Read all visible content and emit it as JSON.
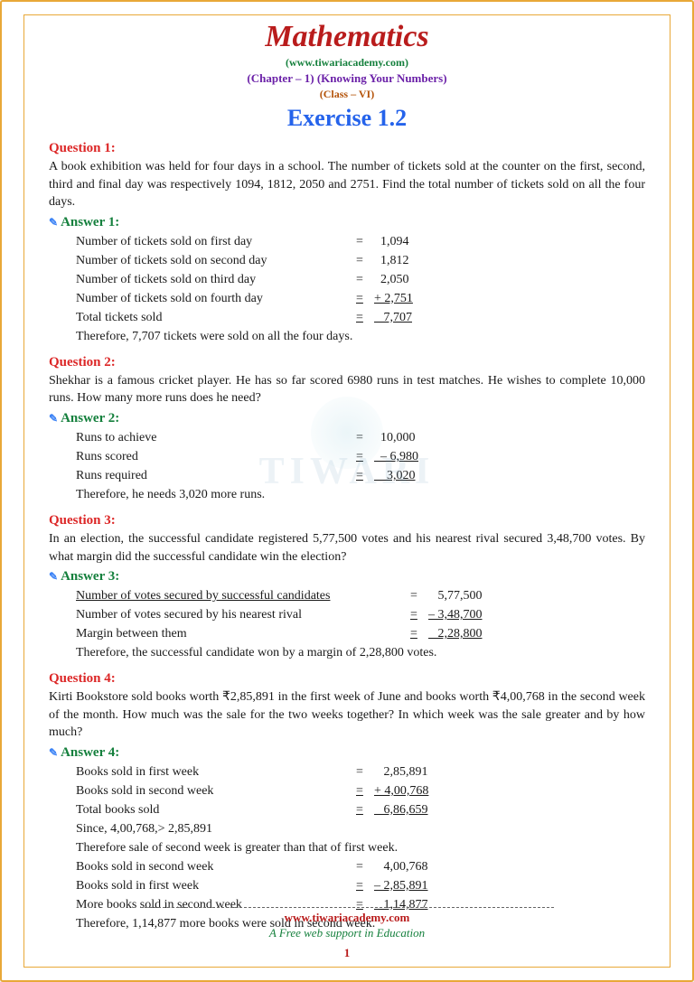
{
  "header": {
    "title": "Mathematics",
    "website": "(www.tiwariacademy.com)",
    "chapter": "(Chapter – 1) (Knowing Your Numbers)",
    "class": "(Class – VI)",
    "exercise": "Exercise 1.2"
  },
  "q1": {
    "label": "Question 1:",
    "text": "A book exhibition was held for four days in a school. The number of tickets sold at the counter on the first, second, third and final day was respectively 1094, 1812, 2050 and 2751. Find the total number of tickets sold on all the four days.",
    "answer_label": "Answer 1:",
    "rows": [
      {
        "desc": "Number of tickets sold on first day",
        "val": "  1,094"
      },
      {
        "desc": "Number of tickets sold on second day",
        "val": "  1,812"
      },
      {
        "desc": "Number of tickets sold on third day",
        "val": "  2,050"
      },
      {
        "desc": "Number of tickets sold on fourth day",
        "val": "+ 2,751",
        "u": true
      },
      {
        "desc": "Total tickets sold",
        "val": "   7,707",
        "u": true
      }
    ],
    "conclusion": "Therefore, 7,707 tickets were sold on all the four days."
  },
  "q2": {
    "label": "Question 2:",
    "text": "Shekhar is a famous cricket player. He has so far scored 6980 runs in test matches. He wishes to complete 10,000 runs. How many more runs does he need?",
    "answer_label": "Answer 2:",
    "rows": [
      {
        "desc": "Runs to achieve",
        "val": "  10,000"
      },
      {
        "desc": "Runs scored",
        "val": "  – 6,980",
        "u": true
      },
      {
        "desc": "Runs required",
        "val": "    3,020",
        "u": true
      }
    ],
    "conclusion": "Therefore, he needs 3,020 more runs."
  },
  "q3": {
    "label": "Question 3:",
    "text": "In an election, the successful candidate registered 5,77,500 votes and his nearest rival secured 3,48,700 votes. By what margin did the successful candidate win the election?",
    "answer_label": "Answer 3:",
    "rows": [
      {
        "desc": "Number of votes secured by successful candidates",
        "val": "   5,77,500"
      },
      {
        "desc": "Number of votes secured by his nearest rival",
        "val": "– 3,48,700",
        "u": true
      },
      {
        "desc": "Margin between them",
        "val": "   2,28,800",
        "u": true
      }
    ],
    "conclusion": "Therefore, the successful candidate won by a margin of 2,28,800 votes."
  },
  "q4": {
    "label": "Question 4:",
    "text": "Kirti Bookstore sold books worth ₹2,85,891 in the first week of June and books worth ₹4,00,768 in the second week of the month. How much was the sale for the two weeks together? In which week was the sale greater and by how much?",
    "answer_label": "Answer 4:",
    "rows1": [
      {
        "desc": "Books sold in first week",
        "val": "   2,85,891"
      },
      {
        "desc": "Books sold in second week",
        "val": "+ 4,00,768",
        "u": true
      },
      {
        "desc": "Total books sold",
        "val": "   6,86,659",
        "u": true
      }
    ],
    "mid1": "Since, 4,00,768,> 2,85,891",
    "mid2": "Therefore sale of second week is greater than that of first week.",
    "rows2": [
      {
        "desc": "Books sold in second week",
        "val": "   4,00,768"
      },
      {
        "desc": "Books sold in first week",
        "val": "– 2,85,891",
        "u": true
      },
      {
        "desc": "More books sold in second week",
        "val": "   1,14,877",
        "u": true
      }
    ],
    "conclusion": "Therefore, 1,14,877 more books were sold in second week."
  },
  "footer": {
    "url": "www.tiwariacademy.com",
    "tagline": "A Free web support in Education",
    "page": "1"
  },
  "watermark": "TIWARI"
}
